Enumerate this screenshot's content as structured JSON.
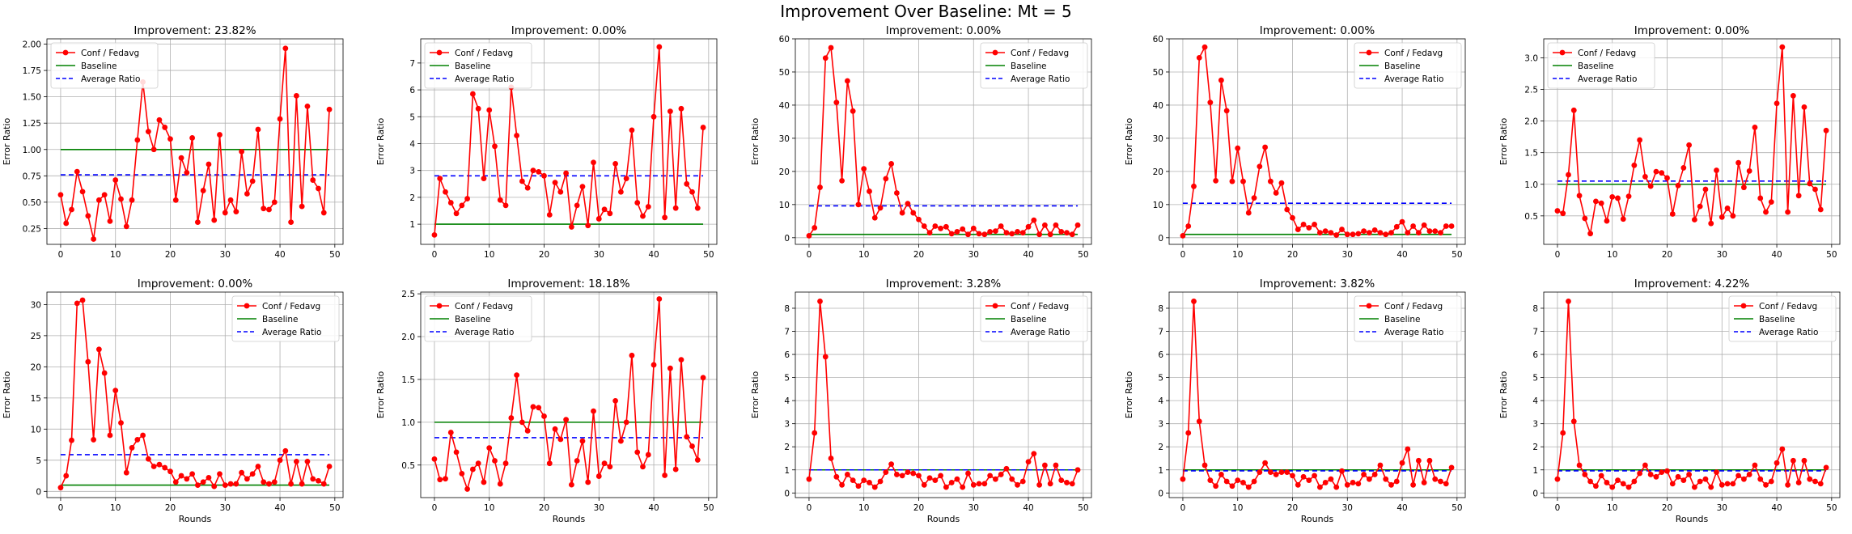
{
  "figure": {
    "suptitle": "Improvement Over Baseline: Mt = 5"
  },
  "colors": {
    "series": "#ff0000",
    "baseline": "#008000",
    "average": "#0000ff",
    "grid": "#b0b0b0"
  },
  "chart_data": [
    {
      "type": "line",
      "title": "Improvement: 23.82%",
      "xlabel": "",
      "ylabel": "Error Ratio",
      "legend": "top-left",
      "grid": true,
      "xlim": [
        -2.5,
        51.5
      ],
      "ylim": [
        0.1,
        2.05
      ],
      "xticks": [
        0,
        10,
        20,
        30,
        40,
        50
      ],
      "yticks": [
        0.25,
        0.5,
        0.75,
        1.0,
        1.25,
        1.5,
        1.75,
        2.0
      ],
      "ytick_labels": [
        "0.25",
        "0.50",
        "0.75",
        "1.00",
        "1.25",
        "1.50",
        "1.75",
        "2.00"
      ],
      "baseline": 1.0,
      "average": 0.76,
      "series": [
        {
          "name": "Conf / Fedavg",
          "values": [
            0.57,
            0.3,
            0.43,
            0.79,
            0.6,
            0.37,
            0.15,
            0.52,
            0.57,
            0.32,
            0.71,
            0.53,
            0.27,
            0.52,
            1.09,
            1.64,
            1.17,
            1.0,
            1.28,
            1.21,
            1.1,
            0.52,
            0.92,
            0.78,
            1.11,
            0.31,
            0.61,
            0.86,
            0.33,
            1.14,
            0.4,
            0.52,
            0.41,
            0.98,
            0.58,
            0.7,
            1.19,
            0.44,
            0.43,
            0.5,
            1.29,
            1.96,
            0.31,
            1.51,
            0.46,
            1.41,
            0.71,
            0.63,
            0.4,
            1.38
          ]
        }
      ]
    },
    {
      "type": "line",
      "title": "Improvement: 0.00%",
      "xlabel": "",
      "ylabel": "Error Ratio",
      "legend": "top-left",
      "grid": true,
      "xlim": [
        -2.5,
        51.5
      ],
      "ylim": [
        0.25,
        7.9
      ],
      "xticks": [
        0,
        10,
        20,
        30,
        40,
        50
      ],
      "yticks": [
        1,
        2,
        3,
        4,
        5,
        6,
        7
      ],
      "baseline": 1.0,
      "average": 2.8,
      "series": [
        {
          "name": "Conf / Fedavg",
          "values": [
            0.6,
            2.7,
            2.2,
            1.8,
            1.4,
            1.7,
            1.95,
            5.85,
            5.3,
            2.7,
            5.25,
            3.9,
            1.9,
            1.7,
            6.1,
            4.3,
            2.6,
            2.35,
            3.0,
            2.95,
            2.8,
            1.35,
            2.55,
            2.2,
            2.9,
            0.9,
            1.7,
            2.4,
            0.95,
            3.3,
            1.2,
            1.55,
            1.4,
            3.25,
            2.2,
            2.7,
            4.5,
            1.8,
            1.3,
            1.65,
            5.0,
            7.6,
            1.25,
            5.2,
            1.6,
            5.3,
            2.5,
            2.2,
            1.6,
            4.6
          ]
        }
      ]
    },
    {
      "type": "line",
      "title": "Improvement: 0.00%",
      "xlabel": "",
      "ylabel": "Error Ratio",
      "legend": "top-right",
      "grid": true,
      "xlim": [
        -2.5,
        51.5
      ],
      "ylim": [
        -2,
        60
      ],
      "xticks": [
        0,
        10,
        20,
        30,
        40,
        50
      ],
      "yticks": [
        0,
        10,
        20,
        30,
        40,
        50,
        60
      ],
      "baseline": 1.0,
      "average": 9.6,
      "series": [
        {
          "name": "Conf / Fedavg",
          "values": [
            0.6,
            3.0,
            15.2,
            54.2,
            57.3,
            40.8,
            17.2,
            47.3,
            38.2,
            10.0,
            20.8,
            14.0,
            6.0,
            9.0,
            17.8,
            22.3,
            13.5,
            7.5,
            10.3,
            7.5,
            5.5,
            3.5,
            1.5,
            3.5,
            2.8,
            3.3,
            1.2,
            1.8,
            2.6,
            1.0,
            2.8,
            1.2,
            1.0,
            1.8,
            2.0,
            3.5,
            1.5,
            1.2,
            1.8,
            1.5,
            3.3,
            5.3,
            1.0,
            3.8,
            1.0,
            3.8,
            1.8,
            1.5,
            1.0,
            3.8
          ]
        }
      ]
    },
    {
      "type": "line",
      "title": "Improvement: 0.00%",
      "xlabel": "",
      "ylabel": "Error Ratio",
      "legend": "top-right",
      "grid": true,
      "xlim": [
        -2.5,
        51.5
      ],
      "ylim": [
        -2,
        60
      ],
      "xticks": [
        0,
        10,
        20,
        30,
        40,
        50
      ],
      "yticks": [
        0,
        10,
        20,
        30,
        40,
        50,
        60
      ],
      "baseline": 1.0,
      "average": 10.4,
      "series": [
        {
          "name": "Conf / Fedavg",
          "values": [
            0.6,
            3.5,
            15.5,
            54.3,
            57.5,
            40.8,
            17.2,
            47.5,
            38.3,
            17.0,
            27.0,
            17.0,
            7.5,
            12.0,
            21.5,
            27.3,
            17.0,
            13.5,
            16.5,
            8.5,
            6.0,
            2.5,
            4.0,
            3.0,
            4.0,
            1.5,
            2.0,
            1.5,
            0.8,
            2.5,
            1.0,
            1.0,
            1.2,
            2.0,
            1.5,
            2.3,
            1.5,
            1.0,
            1.5,
            3.3,
            4.8,
            1.5,
            3.5,
            1.5,
            3.8,
            2.0,
            2.0,
            1.5,
            3.5,
            3.5
          ]
        }
      ]
    },
    {
      "type": "line",
      "title": "Improvement: 0.00%",
      "xlabel": "",
      "ylabel": "Error Ratio",
      "legend": "top-left",
      "grid": true,
      "xlim": [
        -2.5,
        51.5
      ],
      "ylim": [
        0.05,
        3.3
      ],
      "xticks": [
        0,
        10,
        20,
        30,
        40,
        50
      ],
      "yticks": [
        0.5,
        1.0,
        1.5,
        2.0,
        2.5,
        3.0
      ],
      "ytick_labels": [
        "0.5",
        "1.0",
        "1.5",
        "2.0",
        "2.5",
        "3.0"
      ],
      "baseline": 1.0,
      "average": 1.05,
      "series": [
        {
          "name": "Conf / Fedavg",
          "values": [
            0.58,
            0.54,
            1.15,
            2.17,
            0.82,
            0.46,
            0.22,
            0.73,
            0.7,
            0.42,
            0.8,
            0.78,
            0.45,
            0.81,
            1.3,
            1.7,
            1.12,
            0.97,
            1.2,
            1.18,
            1.1,
            0.53,
            0.98,
            1.26,
            1.62,
            0.44,
            0.65,
            0.92,
            0.38,
            1.22,
            0.48,
            0.62,
            0.5,
            1.34,
            0.95,
            1.21,
            1.9,
            0.78,
            0.56,
            0.72,
            2.28,
            3.17,
            0.56,
            2.4,
            0.82,
            2.22,
            1.01,
            0.92,
            0.6,
            1.85
          ]
        }
      ]
    },
    {
      "type": "line",
      "title": "Improvement: 0.00%",
      "xlabel": "Rounds",
      "ylabel": "Error Ratio",
      "legend": "top-right",
      "grid": true,
      "xlim": [
        -2.5,
        51.5
      ],
      "ylim": [
        -1,
        32
      ],
      "xticks": [
        0,
        10,
        20,
        30,
        40,
        50
      ],
      "yticks": [
        0,
        5,
        10,
        15,
        20,
        25,
        30
      ],
      "baseline": 1.0,
      "average": 5.9,
      "series": [
        {
          "name": "Conf / Fedavg",
          "values": [
            0.6,
            2.5,
            8.2,
            30.2,
            30.7,
            20.8,
            8.3,
            22.8,
            19.0,
            9.0,
            16.2,
            11.0,
            3.0,
            7.0,
            8.3,
            9.0,
            5.2,
            4.0,
            4.3,
            3.8,
            3.2,
            1.5,
            2.5,
            2.0,
            2.8,
            1.0,
            1.5,
            2.2,
            0.8,
            2.8,
            1.0,
            1.2,
            1.2,
            3.0,
            2.0,
            2.8,
            4.0,
            1.5,
            1.2,
            1.5,
            5.0,
            6.5,
            1.2,
            4.8,
            1.2,
            4.8,
            2.0,
            1.7,
            1.2,
            4.0
          ]
        }
      ]
    },
    {
      "type": "line",
      "title": "Improvement: 18.18%",
      "xlabel": "Rounds",
      "ylabel": "Error Ratio",
      "legend": "top-left",
      "grid": true,
      "xlim": [
        -2.5,
        51.5
      ],
      "ylim": [
        0.12,
        2.52
      ],
      "xticks": [
        0,
        10,
        20,
        30,
        40,
        50
      ],
      "yticks": [
        0.5,
        1.0,
        1.5,
        2.0,
        2.5
      ],
      "ytick_labels": [
        "0.5",
        "1.0",
        "1.5",
        "2.0",
        "2.5"
      ],
      "baseline": 1.0,
      "average": 0.82,
      "series": [
        {
          "name": "Conf / Fedavg",
          "values": [
            0.57,
            0.33,
            0.34,
            0.88,
            0.65,
            0.4,
            0.22,
            0.45,
            0.52,
            0.3,
            0.7,
            0.55,
            0.28,
            0.52,
            1.05,
            1.55,
            1.0,
            0.9,
            1.18,
            1.17,
            1.07,
            0.52,
            0.92,
            0.8,
            1.03,
            0.27,
            0.55,
            0.78,
            0.3,
            1.13,
            0.37,
            0.52,
            0.48,
            1.25,
            0.78,
            1.0,
            1.78,
            0.65,
            0.48,
            0.62,
            1.67,
            2.44,
            0.38,
            1.63,
            0.45,
            1.73,
            0.83,
            0.72,
            0.56,
            1.52
          ]
        }
      ]
    },
    {
      "type": "line",
      "title": "Improvement: 3.28%",
      "xlabel": "Rounds",
      "ylabel": "Error Ratio",
      "legend": "top-right",
      "grid": true,
      "xlim": [
        -2.5,
        51.5
      ],
      "ylim": [
        -0.2,
        8.7
      ],
      "xticks": [
        0,
        10,
        20,
        30,
        40,
        50
      ],
      "yticks": [
        0,
        1,
        2,
        3,
        4,
        5,
        6,
        7,
        8
      ],
      "baseline": 1.0,
      "average": 1.0,
      "series": [
        {
          "name": "Conf / Fedavg",
          "values": [
            0.6,
            2.6,
            8.3,
            5.9,
            1.5,
            0.7,
            0.35,
            0.8,
            0.55,
            0.3,
            0.55,
            0.45,
            0.25,
            0.5,
            0.9,
            1.25,
            0.8,
            0.75,
            0.9,
            0.85,
            0.75,
            0.35,
            0.65,
            0.55,
            0.75,
            0.25,
            0.45,
            0.6,
            0.25,
            0.85,
            0.35,
            0.4,
            0.4,
            0.75,
            0.6,
            0.8,
            1.05,
            0.6,
            0.35,
            0.5,
            1.35,
            1.7,
            0.35,
            1.2,
            0.4,
            1.2,
            0.55,
            0.45,
            0.4,
            1.0
          ]
        }
      ]
    },
    {
      "type": "line",
      "title": "Improvement: 3.82%",
      "xlabel": "Rounds",
      "ylabel": "Error Ratio",
      "legend": "top-right",
      "grid": true,
      "xlim": [
        -2.5,
        51.5
      ],
      "ylim": [
        -0.2,
        8.7
      ],
      "xticks": [
        0,
        10,
        20,
        30,
        40,
        50
      ],
      "yticks": [
        0,
        1,
        2,
        3,
        4,
        5,
        6,
        7,
        8
      ],
      "baseline": 1.0,
      "average": 0.96,
      "series": [
        {
          "name": "Conf / Fedavg",
          "values": [
            0.6,
            2.6,
            8.3,
            3.1,
            1.2,
            0.55,
            0.3,
            0.8,
            0.5,
            0.3,
            0.55,
            0.45,
            0.25,
            0.5,
            0.9,
            1.3,
            0.9,
            0.8,
            0.9,
            0.9,
            0.75,
            0.35,
            0.7,
            0.55,
            0.75,
            0.25,
            0.45,
            0.6,
            0.25,
            0.95,
            0.35,
            0.45,
            0.4,
            0.8,
            0.6,
            0.8,
            1.2,
            0.6,
            0.35,
            0.5,
            1.3,
            1.9,
            0.35,
            1.4,
            0.45,
            1.4,
            0.6,
            0.5,
            0.4,
            1.1
          ]
        }
      ]
    },
    {
      "type": "line",
      "title": "Improvement: 4.22%",
      "xlabel": "Rounds",
      "ylabel": "Error Ratio",
      "legend": "top-right",
      "grid": true,
      "xlim": [
        -2.5,
        51.5
      ],
      "ylim": [
        -0.2,
        8.7
      ],
      "xticks": [
        0,
        10,
        20,
        30,
        40,
        50
      ],
      "yticks": [
        0,
        1,
        2,
        3,
        4,
        5,
        6,
        7,
        8
      ],
      "baseline": 1.0,
      "average": 0.96,
      "series": [
        {
          "name": "Conf / Fedavg",
          "values": [
            0.6,
            2.6,
            8.3,
            3.1,
            1.2,
            0.8,
            0.5,
            0.3,
            0.75,
            0.45,
            0.25,
            0.55,
            0.4,
            0.25,
            0.5,
            0.85,
            1.2,
            0.8,
            0.7,
            0.9,
            0.95,
            0.4,
            0.7,
            0.55,
            0.8,
            0.25,
            0.5,
            0.6,
            0.25,
            0.9,
            0.35,
            0.4,
            0.4,
            0.75,
            0.6,
            0.8,
            1.2,
            0.6,
            0.35,
            0.5,
            1.3,
            1.9,
            0.35,
            1.4,
            0.45,
            1.4,
            0.6,
            0.5,
            0.4,
            1.1
          ]
        }
      ]
    }
  ],
  "legend_labels": [
    "Conf / Fedavg",
    "Baseline",
    "Average Ratio"
  ]
}
